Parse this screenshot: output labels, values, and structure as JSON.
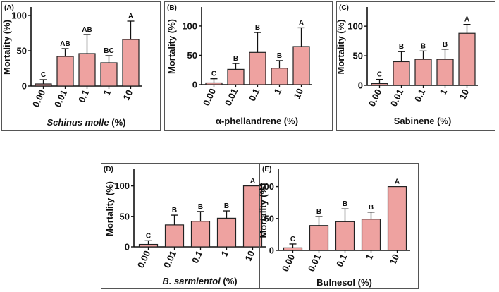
{
  "chart_data": [
    {
      "type": "bar",
      "panel": "(A)",
      "categories": [
        "0.00",
        "0.01",
        "0.1",
        "1",
        "10"
      ],
      "values": [
        3,
        42,
        46,
        33,
        66
      ],
      "errors": [
        6,
        11,
        27,
        10,
        26
      ],
      "letters": [
        "C",
        "AB",
        "AB",
        "BC",
        "A"
      ],
      "ylabel": "Mortality (%)",
      "xlabel_italic": "Schinus molle",
      "xlabel_rest": " (%)",
      "yticks": [
        0,
        50,
        100
      ],
      "ylim": [
        0,
        110
      ]
    },
    {
      "type": "bar",
      "panel": "(B)",
      "categories": [
        "0.00",
        "0.01",
        "0.1",
        "1",
        "10"
      ],
      "values": [
        3,
        26,
        55,
        28,
        65
      ],
      "errors": [
        7,
        10,
        34,
        13,
        32
      ],
      "letters": [
        "C",
        "B",
        "B",
        "B",
        "A"
      ],
      "ylabel": "Mortality (%)",
      "xlabel_italic": "",
      "xlabel_rest": "α-phellandrene (%)",
      "yticks": [
        0,
        50,
        100
      ],
      "ylim": [
        0,
        130
      ]
    },
    {
      "type": "bar",
      "panel": "(C)",
      "categories": [
        "0.00",
        "0.01",
        "0.1",
        "1",
        "10"
      ],
      "values": [
        3,
        40,
        44,
        44,
        88
      ],
      "errors": [
        7,
        17,
        14,
        17,
        15
      ],
      "letters": [
        "C",
        "B",
        "B",
        "B",
        "A"
      ],
      "ylabel": "Mortality (%)",
      "xlabel_italic": "",
      "xlabel_rest": "Sabinene (%)",
      "yticks": [
        0,
        50,
        100
      ],
      "ylim": [
        0,
        130
      ]
    },
    {
      "type": "bar",
      "panel": "(D)",
      "categories": [
        "0.00",
        "0.01",
        "0.1",
        "1",
        "10"
      ],
      "values": [
        4,
        36,
        42,
        47,
        100
      ],
      "errors": [
        6,
        16,
        16,
        12,
        0
      ],
      "letters": [
        "C",
        "B",
        "B",
        "B",
        "A"
      ],
      "ylabel": "Mortality (%)",
      "xlabel_italic": "B. sarmientoi",
      "xlabel_rest": " (%)",
      "yticks": [
        0,
        50,
        100
      ],
      "ylim": [
        0,
        125
      ]
    },
    {
      "type": "bar",
      "panel": "(E)",
      "categories": [
        "0.00",
        "0.01",
        "0.1",
        "1",
        "10"
      ],
      "values": [
        4,
        39,
        45,
        49,
        100
      ],
      "errors": [
        6,
        14,
        20,
        11,
        0
      ],
      "letters": [
        "C",
        "B",
        "B",
        "B",
        "A"
      ],
      "ylabel": "Mortality (%)",
      "xlabel_italic": "",
      "xlabel_rest": "Bulnesol (%)",
      "yticks": [
        0,
        50,
        100
      ],
      "ylim": [
        0,
        125
      ]
    }
  ],
  "style": {
    "bar_fill": "#eea2a0",
    "bar_stroke": "#222222",
    "axis_color": "#111111",
    "panel_border": "#555555"
  }
}
